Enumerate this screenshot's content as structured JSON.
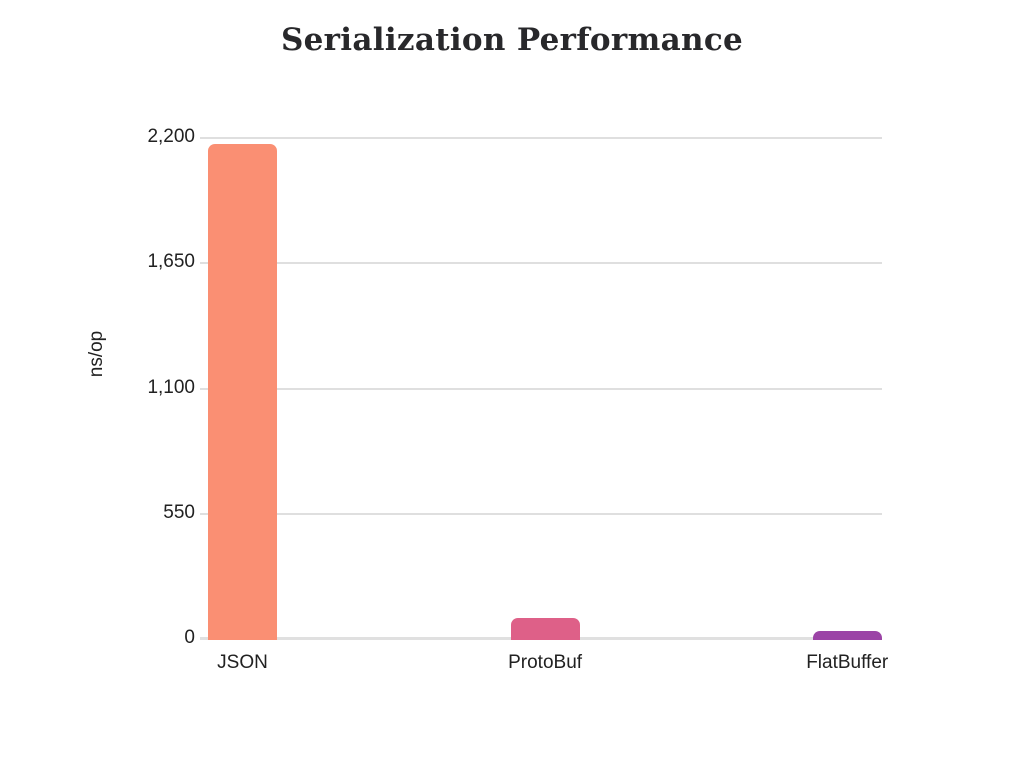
{
  "chart_data": {
    "type": "bar",
    "title": "Serialization Performance",
    "xlabel": "",
    "ylabel": "ns/op",
    "categories": [
      "JSON",
      "ProtoBuf",
      "FlatBuffer"
    ],
    "values": [
      2180,
      95,
      40
    ],
    "unit": "ns/op",
    "ylim": [
      0,
      2200
    ],
    "yticks": [
      0,
      550,
      1100,
      1650,
      2200
    ],
    "ytick_labels": [
      "0",
      "550",
      "1,100",
      "1,650",
      "2,200"
    ],
    "bar_colors": [
      "#FA8F73",
      "#DE6088",
      "#9B44A6"
    ],
    "grid": "horizontal",
    "legend": "none",
    "background": "#FFFFFF"
  },
  "colors": {
    "title_text": "#28282B",
    "axis_text": "#212121",
    "gridline": "#DFDFDF",
    "baseline": "#E0E0E0"
  }
}
